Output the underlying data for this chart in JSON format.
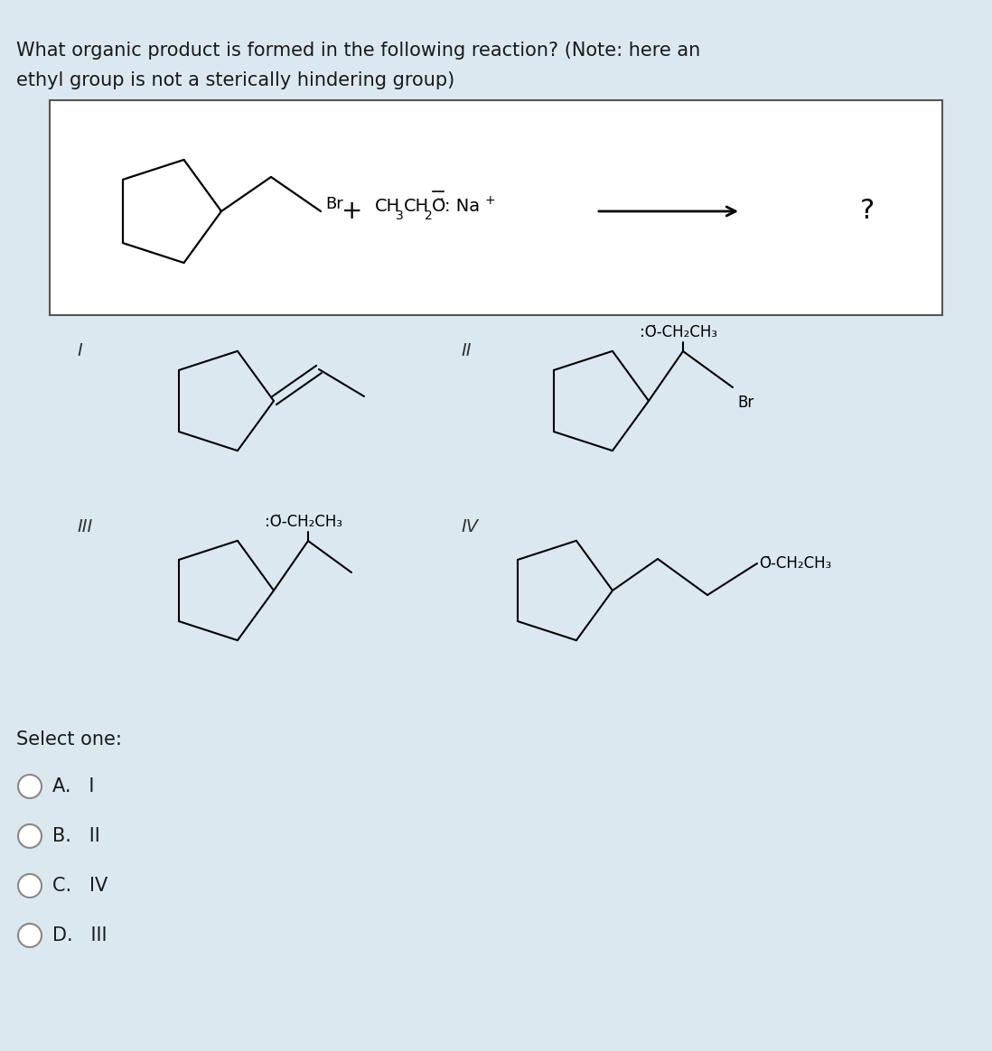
{
  "title_line1": "What organic product is formed in the following reaction? (Note: here an",
  "title_line2": "ethyl group is not a sterically hindering group)",
  "bg_color": "#dce8f0",
  "box_bg": "#ffffff",
  "select_one": "Select one:",
  "options": [
    "A.   I",
    "B.   II",
    "C.   IV",
    "D.   III"
  ],
  "question_mark": "?"
}
